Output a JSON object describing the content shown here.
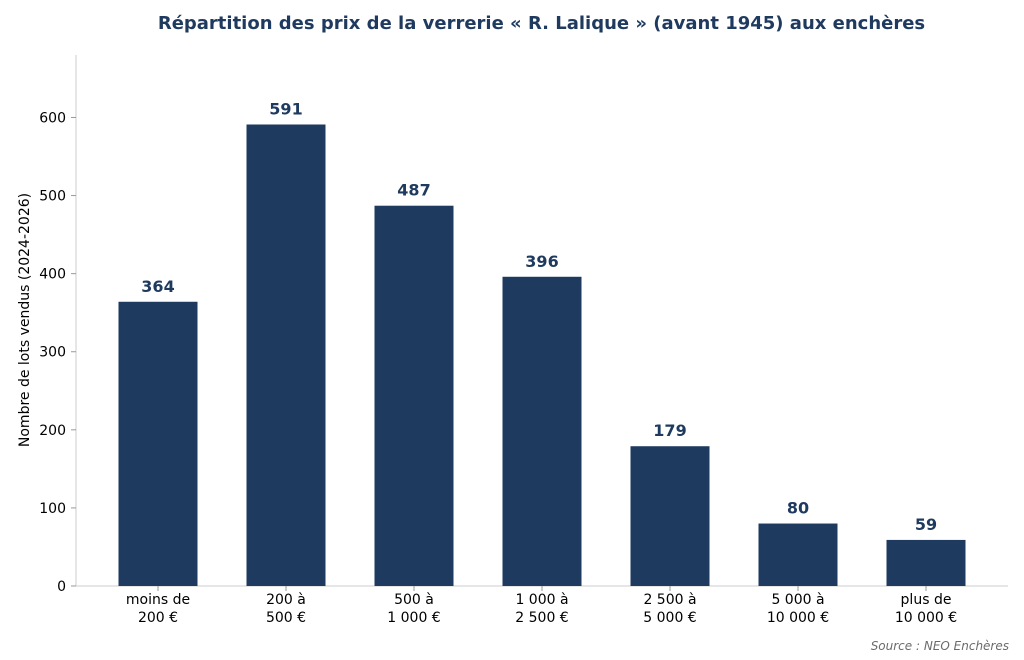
{
  "chart_data": {
    "type": "bar",
    "title": "Répartition des prix de la verrerie « R. Lalique » (avant 1945) aux enchères",
    "xlabel": "",
    "ylabel": "Nombre de lots vendus (2024-2026)",
    "categories": [
      [
        "moins de",
        "200 €"
      ],
      [
        "200 à",
        "500 €"
      ],
      [
        "500 à",
        "1 000 €"
      ],
      [
        "1 000 à",
        "2 500 €"
      ],
      [
        "2 500 à",
        "5 000 €"
      ],
      [
        "5 000 à",
        "10 000 €"
      ],
      [
        "plus de",
        "10 000 €"
      ]
    ],
    "values": [
      364,
      591,
      487,
      396,
      179,
      80,
      59
    ],
    "ylim": [
      0,
      680
    ],
    "yticks": [
      0,
      100,
      200,
      300,
      400,
      500,
      600
    ],
    "grid": false,
    "legend": "none",
    "bar_color": "#1f3a5f",
    "label_color": "#1f3a5f",
    "source": "Source : NEO Enchères"
  }
}
